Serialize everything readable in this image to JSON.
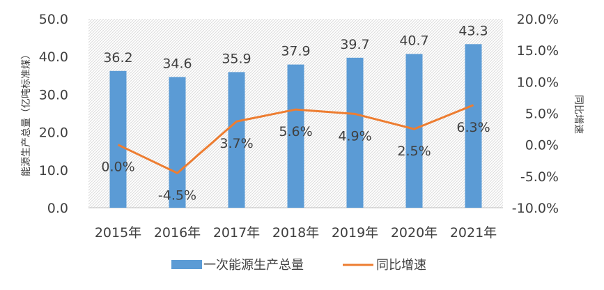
{
  "chart_data": {
    "type": "bar",
    "categories": [
      "2015年",
      "2016年",
      "2017年",
      "2018年",
      "2019年",
      "2020年",
      "2021年"
    ],
    "series": [
      {
        "name": "一次能源生产总量",
        "type": "bar",
        "axis": "left",
        "values": [
          36.2,
          34.6,
          35.9,
          37.9,
          39.7,
          40.7,
          43.3
        ],
        "labels": [
          "36.2",
          "34.6",
          "35.9",
          "37.9",
          "39.7",
          "40.7",
          "43.3"
        ],
        "color": "#5B9BD5"
      },
      {
        "name": "同比增速",
        "type": "line",
        "axis": "right",
        "values": [
          0.0,
          -4.5,
          3.7,
          5.6,
          4.9,
          2.5,
          6.3
        ],
        "labels": [
          "0.0%",
          "-4.5%",
          "3.7%",
          "5.6%",
          "4.9%",
          "2.5%",
          "6.3%"
        ],
        "color": "#ED7D31"
      }
    ],
    "ylabel": "能源生产总量（亿吨标准煤）",
    "y2label": "同比增速",
    "ylim": [
      0,
      50
    ],
    "y2lim": [
      -10,
      20
    ],
    "yticks": [
      "0.0",
      "10.0",
      "20.0",
      "30.0",
      "40.0",
      "50.0"
    ],
    "y2ticks": [
      "-10.0%",
      "-5.0%",
      "0.0%",
      "5.0%",
      "10.0%",
      "15.0%",
      "20.0%"
    ],
    "legend": "bottom",
    "grid": false,
    "plot_background": "hatched"
  }
}
